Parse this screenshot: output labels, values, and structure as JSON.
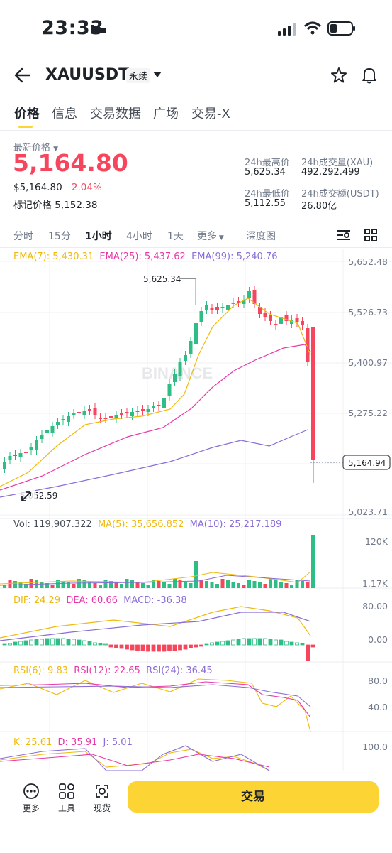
{
  "status": {
    "time": "23:33"
  },
  "header": {
    "symbol": "XAUUSDT",
    "tag": "永续"
  },
  "tabs": [
    {
      "label": "价格",
      "active": true
    },
    {
      "label": "信息"
    },
    {
      "label": "交易数据"
    },
    {
      "label": "广场"
    },
    {
      "label": "交易-X"
    }
  ],
  "price": {
    "latest_label": "最新价格",
    "last": "5,164.80",
    "usd": "$5,164.80",
    "change": "-2.04%",
    "mark_label": "标记价格",
    "mark": "5,152.38"
  },
  "stats": {
    "high_label": "24h最高价",
    "high": "5,625.34",
    "vol_label": "24h成交量(XAU)",
    "vol": "492,292.499",
    "low_label": "24h最低价",
    "low": "5,112.55",
    "amt_label": "24h成交额(USDT)",
    "amt": "26.80亿"
  },
  "timeframes": [
    "分时",
    "15分",
    "1小时",
    "4小时",
    "1天",
    "更多",
    "深度图"
  ],
  "active_timeframe": "1小时",
  "ema": {
    "ema7": "EMA(7): 5,430.31",
    "ema25": "EMA(25): 5,437.62",
    "ema99": "EMA(99): 5,240.76"
  },
  "price_axis": [
    "5,652.48",
    "5,526.73",
    "5,400.97",
    "5,275.22",
    "5,023.71"
  ],
  "high_marker": "5,625.34",
  "low_marker": "5,052.59",
  "current_price_tag": "5,164.94",
  "watermark": "BINANCE",
  "volume": {
    "vol": "Vol: 119,907.322",
    "ma5": "MA(5): 35,656.852",
    "ma10": "MA(10): 25,217.189",
    "axis_top": "120K",
    "axis_bottom": "1.17K"
  },
  "macd": {
    "dif": "DIF: 24.29",
    "dea": "DEA: 60.66",
    "macd": "MACD: -36.38",
    "axis_top": "80.00",
    "axis_bottom": "0.00"
  },
  "rsi": {
    "rsi6": "RSI(6): 9.83",
    "rsi12": "RSI(12): 22.65",
    "rsi24": "RSI(24): 36.45",
    "axis_top": "80.0",
    "axis_bottom": "40.0"
  },
  "kdj": {
    "k": "K: 25.61",
    "d": "D: 35.91",
    "j": "J: 5.01",
    "axis_top": "100.0"
  },
  "bottom_nav": {
    "more": "更多",
    "tools": "工具",
    "spot": "现货",
    "trade": "交易"
  },
  "colors": {
    "up": "#2ebd85",
    "down": "#f6465d",
    "ema7": "#f0b90b",
    "ema25": "#e838a8",
    "ema99": "#8a6dd6",
    "accent": "#fcd535"
  }
}
